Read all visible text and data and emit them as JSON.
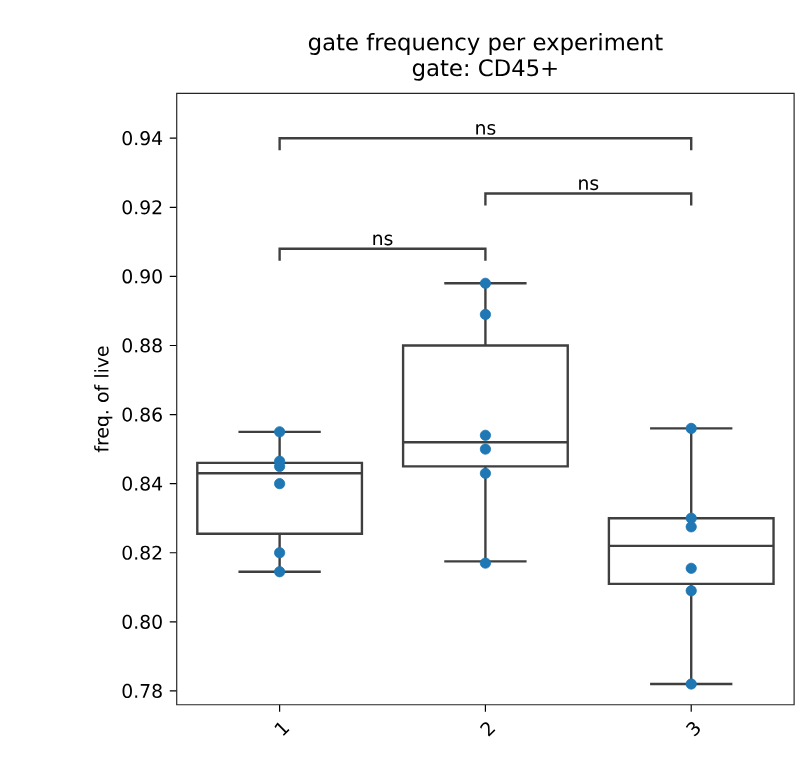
{
  "chart_data": {
    "type": "box",
    "title": "gate frequency per experiment",
    "subtitle": "gate: CD45+",
    "ylabel": "freq. of live",
    "categories": [
      "1",
      "2",
      "3"
    ],
    "color": "#3f3f3f",
    "boxes": [
      {
        "low": 0.8145,
        "q1": 0.8255,
        "median": 0.843,
        "q3": 0.846,
        "high": 0.855
      },
      {
        "low": 0.8175,
        "q1": 0.845,
        "median": 0.852,
        "q3": 0.88,
        "high": 0.898
      },
      {
        "low": 0.782,
        "q1": 0.811,
        "median": 0.822,
        "q3": 0.83,
        "high": 0.856
      }
    ],
    "series": [
      {
        "type": "scatter",
        "color": "#1f77b4",
        "x": [
          "1",
          "1",
          "1",
          "1",
          "1",
          "1",
          "2",
          "2",
          "2",
          "2",
          "2",
          "2",
          "3",
          "3",
          "3",
          "3",
          "3",
          "3"
        ],
        "values": [
          0.855,
          0.8465,
          0.845,
          0.84,
          0.82,
          0.8145,
          0.898,
          0.889,
          0.854,
          0.85,
          0.843,
          0.817,
          0.856,
          0.83,
          0.8275,
          0.8155,
          0.809,
          0.782
        ]
      }
    ],
    "ylim": [
      0.776,
      0.953
    ],
    "yticks": [
      {
        "value": 0.78,
        "label": "0.78"
      },
      {
        "value": 0.8,
        "label": "0.80"
      },
      {
        "value": 0.82,
        "label": "0.82"
      },
      {
        "value": 0.84,
        "label": "0.84"
      },
      {
        "value": 0.86,
        "label": "0.86"
      },
      {
        "value": 0.88,
        "label": "0.88"
      },
      {
        "value": 0.9,
        "label": "0.90"
      },
      {
        "value": 0.92,
        "label": "0.92"
      },
      {
        "value": 0.94,
        "label": "0.94"
      }
    ],
    "annotations": [
      "ns",
      "ns",
      "ns"
    ]
  }
}
